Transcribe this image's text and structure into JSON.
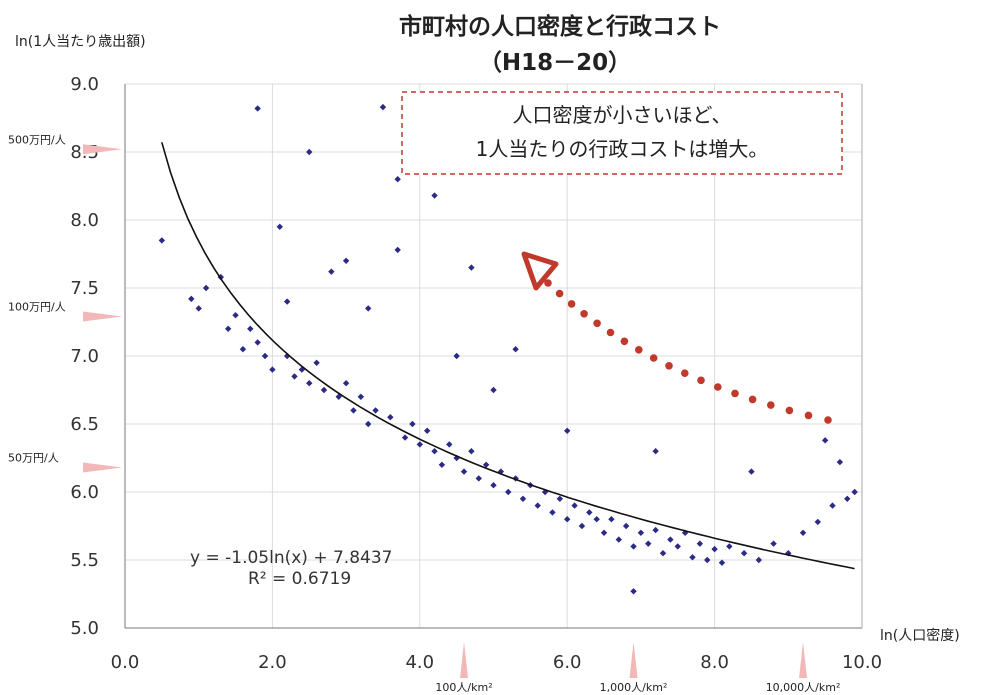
{
  "chart_data": {
    "type": "scatter",
    "title": "市町村の人口密度と行政コスト",
    "subtitle": "（H18－20）",
    "xlabel": "ln(人口密度)",
    "ylabel": "ln(1人当たり歳出額)",
    "xlim": [
      0,
      10
    ],
    "ylim": [
      5,
      9
    ],
    "x_ticks": [
      "0.0",
      "2.0",
      "4.0",
      "6.0",
      "8.0",
      "10.0"
    ],
    "y_ticks": [
      "5.0",
      "5.5",
      "6.0",
      "6.5",
      "7.0",
      "7.5",
      "8.0",
      "8.5",
      "9.0"
    ],
    "grid": true,
    "marker_color": "#2b2b85",
    "trend": {
      "equation": "y = -1.05ln(x) + 7.8437",
      "r2": "R² = 0.6719",
      "slope": -1.05,
      "intercept": 7.8437,
      "x_range": [
        0.5,
        9.9
      ]
    },
    "y_reference_labels": [
      {
        "label": "500万円/人",
        "y": 8.52
      },
      {
        "label": "100万円/人",
        "y": 7.29
      },
      {
        "label": "50万円/人",
        "y": 6.18
      }
    ],
    "x_reference_labels": [
      {
        "label": "100人/km²",
        "x": 4.6
      },
      {
        "label": "1,000人/km²",
        "x": 6.9
      },
      {
        "label": "10,000人/km²",
        "x": 9.2
      }
    ],
    "annotation": {
      "lines": [
        "人口密度が小さいほど、",
        "1人当たりの行政コストは増大。"
      ],
      "border_color": "#c0392b",
      "arrow_color": "#c0392b"
    },
    "points": [
      [
        0.5,
        7.85
      ],
      [
        0.9,
        7.42
      ],
      [
        1.0,
        7.35
      ],
      [
        1.1,
        7.5
      ],
      [
        1.3,
        7.58
      ],
      [
        1.4,
        7.2
      ],
      [
        1.5,
        7.3
      ],
      [
        1.6,
        7.05
      ],
      [
        1.7,
        7.2
      ],
      [
        1.8,
        7.1
      ],
      [
        1.8,
        8.82
      ],
      [
        1.9,
        7.0
      ],
      [
        2.0,
        6.9
      ],
      [
        2.1,
        7.95
      ],
      [
        2.2,
        7.0
      ],
      [
        2.3,
        6.85
      ],
      [
        2.4,
        6.9
      ],
      [
        2.5,
        6.8
      ],
      [
        2.5,
        8.5
      ],
      [
        2.6,
        6.95
      ],
      [
        2.7,
        6.75
      ],
      [
        2.8,
        7.62
      ],
      [
        2.9,
        6.7
      ],
      [
        3.0,
        6.8
      ],
      [
        3.1,
        6.6
      ],
      [
        3.2,
        6.7
      ],
      [
        3.3,
        6.5
      ],
      [
        3.4,
        6.6
      ],
      [
        3.5,
        8.83
      ],
      [
        3.6,
        6.55
      ],
      [
        3.7,
        7.78
      ],
      [
        3.7,
        8.3
      ],
      [
        3.8,
        6.4
      ],
      [
        3.9,
        6.5
      ],
      [
        4.0,
        6.35
      ],
      [
        4.1,
        6.45
      ],
      [
        4.2,
        6.3
      ],
      [
        4.2,
        8.18
      ],
      [
        4.3,
        6.2
      ],
      [
        4.4,
        6.35
      ],
      [
        4.5,
        6.25
      ],
      [
        4.6,
        6.15
      ],
      [
        4.7,
        6.3
      ],
      [
        4.8,
        6.1
      ],
      [
        4.9,
        6.2
      ],
      [
        5.0,
        6.05
      ],
      [
        5.1,
        6.15
      ],
      [
        5.2,
        6.0
      ],
      [
        5.3,
        6.1
      ],
      [
        5.4,
        5.95
      ],
      [
        5.5,
        6.05
      ],
      [
        5.6,
        5.9
      ],
      [
        5.7,
        6.0
      ],
      [
        5.8,
        5.85
      ],
      [
        5.9,
        5.95
      ],
      [
        6.0,
        5.8
      ],
      [
        6.1,
        5.9
      ],
      [
        6.2,
        5.75
      ],
      [
        6.3,
        5.85
      ],
      [
        6.4,
        5.8
      ],
      [
        6.5,
        5.7
      ],
      [
        6.6,
        5.8
      ],
      [
        6.7,
        5.65
      ],
      [
        6.8,
        5.75
      ],
      [
        6.9,
        5.6
      ],
      [
        7.0,
        5.7
      ],
      [
        7.1,
        5.62
      ],
      [
        7.2,
        5.72
      ],
      [
        7.3,
        5.55
      ],
      [
        7.4,
        5.65
      ],
      [
        7.5,
        5.6
      ],
      [
        7.6,
        5.7
      ],
      [
        7.7,
        5.52
      ],
      [
        7.8,
        5.62
      ],
      [
        7.9,
        5.5
      ],
      [
        8.0,
        5.58
      ],
      [
        8.1,
        5.48
      ],
      [
        8.2,
        5.6
      ],
      [
        8.4,
        5.55
      ],
      [
        8.6,
        5.5
      ],
      [
        8.8,
        5.62
      ],
      [
        9.0,
        5.55
      ],
      [
        9.2,
        5.7
      ],
      [
        9.4,
        5.78
      ],
      [
        9.5,
        6.38
      ],
      [
        9.6,
        5.9
      ],
      [
        9.7,
        6.22
      ],
      [
        9.8,
        5.95
      ],
      [
        9.9,
        6.0
      ],
      [
        6.9,
        5.27
      ],
      [
        4.7,
        7.65
      ],
      [
        5.3,
        7.05
      ],
      [
        6.0,
        6.45
      ],
      [
        5.0,
        6.75
      ],
      [
        4.5,
        7.0
      ],
      [
        3.3,
        7.35
      ],
      [
        2.2,
        7.4
      ],
      [
        7.2,
        6.3
      ],
      [
        8.5,
        6.15
      ],
      [
        3.0,
        7.7
      ]
    ]
  }
}
